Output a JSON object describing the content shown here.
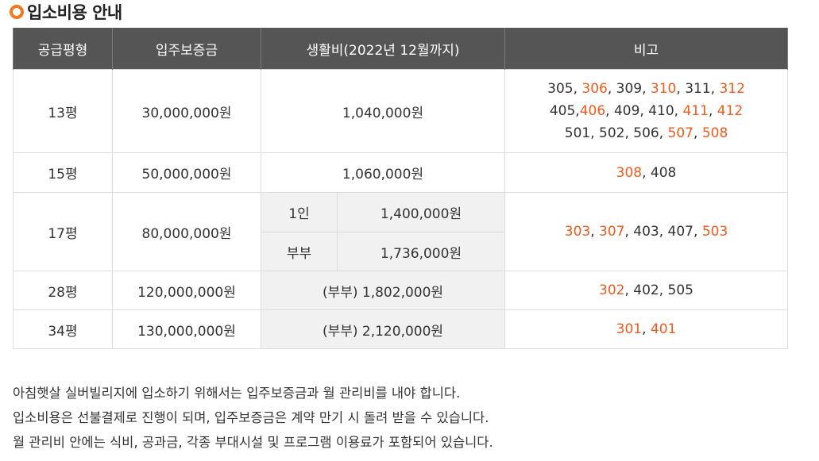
{
  "section": {
    "title": "입소비용 안내",
    "accent": "#f07a22"
  },
  "table": {
    "headers": [
      "공급평형",
      "입주보증금",
      "생활비(2022년 12월까지)",
      "비고"
    ],
    "rows": [
      {
        "size": "13평",
        "deposit": "30,000,000원",
        "living": "1,040,000원",
        "remarks": [
          [
            {
              "t": "305",
              "h": false
            },
            {
              "t": ", ",
              "h": false
            },
            {
              "t": "306",
              "h": true
            },
            {
              "t": ", ",
              "h": false
            },
            {
              "t": "309",
              "h": false
            },
            {
              "t": ", ",
              "h": false
            },
            {
              "t": "310",
              "h": true
            },
            {
              "t": ", ",
              "h": false
            },
            {
              "t": "311",
              "h": false
            },
            {
              "t": ", ",
              "h": false
            },
            {
              "t": "312",
              "h": true
            }
          ],
          [
            {
              "t": "405",
              "h": false
            },
            {
              "t": ",",
              "h": false
            },
            {
              "t": "406",
              "h": true
            },
            {
              "t": ", ",
              "h": false
            },
            {
              "t": "409",
              "h": false
            },
            {
              "t": ", ",
              "h": false
            },
            {
              "t": "410",
              "h": false
            },
            {
              "t": ", ",
              "h": false
            },
            {
              "t": "411",
              "h": true
            },
            {
              "t": ", ",
              "h": false
            },
            {
              "t": "412",
              "h": true
            }
          ],
          [
            {
              "t": "501",
              "h": false
            },
            {
              "t": ", ",
              "h": false
            },
            {
              "t": "502",
              "h": false
            },
            {
              "t": ", ",
              "h": false
            },
            {
              "t": "506",
              "h": false
            },
            {
              "t": ", ",
              "h": false
            },
            {
              "t": "507",
              "h": true
            },
            {
              "t": ", ",
              "h": false
            },
            {
              "t": "508",
              "h": true
            }
          ]
        ]
      },
      {
        "size": "15평",
        "deposit": "50,000,000원",
        "living": "1,060,000원",
        "remarks": [
          [
            {
              "t": "308",
              "h": true
            },
            {
              "t": ", ",
              "h": false
            },
            {
              "t": "408",
              "h": false
            }
          ]
        ]
      },
      {
        "size": "17평",
        "deposit": "80,000,000원",
        "living_split": [
          {
            "label": "1인",
            "amount": "1,400,000원"
          },
          {
            "label": "부부",
            "amount": "1,736,000원"
          }
        ],
        "remarks": [
          [
            {
              "t": "303",
              "h": true
            },
            {
              "t": ", ",
              "h": false
            },
            {
              "t": "307",
              "h": true
            },
            {
              "t": ", ",
              "h": false
            },
            {
              "t": "403",
              "h": false
            },
            {
              "t": ", ",
              "h": false
            },
            {
              "t": "407",
              "h": false
            },
            {
              "t": ", ",
              "h": false
            },
            {
              "t": "503",
              "h": true
            }
          ]
        ]
      },
      {
        "size": "28평",
        "deposit": "120,000,000원",
        "living": "(부부) 1,802,000원",
        "remarks": [
          [
            {
              "t": "302",
              "h": true
            },
            {
              "t": ", ",
              "h": false
            },
            {
              "t": "402",
              "h": false
            },
            {
              "t": ", ",
              "h": false
            },
            {
              "t": "505",
              "h": false
            }
          ]
        ]
      },
      {
        "size": "34평",
        "deposit": "130,000,000원",
        "living": "(부부) 2,120,000원",
        "remarks": [
          [
            {
              "t": "301",
              "h": true
            },
            {
              "t": ", ",
              "h": false
            },
            {
              "t": "401",
              "h": true
            }
          ]
        ]
      }
    ]
  },
  "notes": [
    "아침햇살 실버빌리지에 입소하기 위해서는 입주보증금과 월 관리비를 내야 합니다.",
    "입소비용은 선불결제로 진행이 되며, 입주보증금은 계약 만기 시 돌려 받을 수 있습니다.",
    "월 관리비 안에는 식비, 공과금, 각종 부대시설 및 프로그램 이용료가 포함되어 있습니다."
  ],
  "colors": {
    "header_bg": "#555555",
    "highlight": "#f05a1a",
    "gray_cell": "#f1f1f1"
  }
}
